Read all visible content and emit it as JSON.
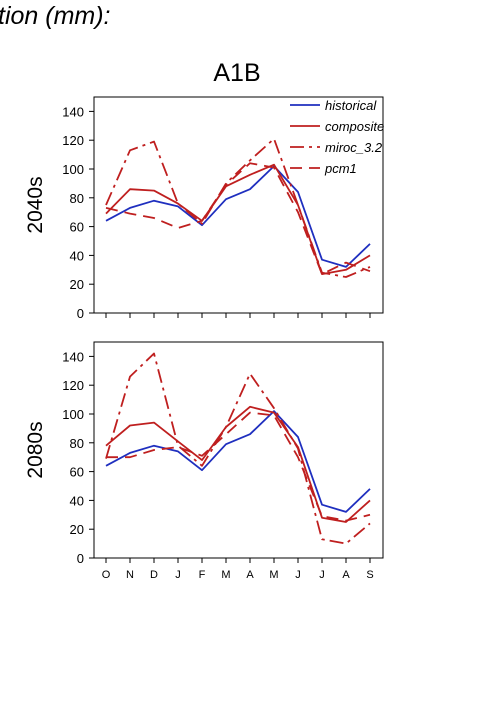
{
  "header": {
    "text": "tion (mm):"
  },
  "scenario_title": "A1B",
  "colors": {
    "historical": "#1f2fbf",
    "projection": "#bf1f1f"
  },
  "chart_data": [
    {
      "type": "line",
      "panel_label": "2040s",
      "categories": [
        "O",
        "N",
        "D",
        "J",
        "F",
        "M",
        "A",
        "M",
        "J",
        "J",
        "A",
        "S"
      ],
      "ylim": [
        0,
        150
      ],
      "yticks": [
        0,
        20,
        40,
        60,
        80,
        100,
        120,
        140
      ],
      "grid": false,
      "legend_position": "top-right",
      "series": [
        {
          "name": "historical",
          "color": "#1f2fbf",
          "dash": "solid",
          "values": [
            64,
            73,
            78,
            74,
            61,
            79,
            86,
            102,
            84,
            37,
            32,
            48
          ]
        },
        {
          "name": "composite",
          "color": "#bf1f1f",
          "dash": "solid",
          "values": [
            69,
            86,
            85,
            76,
            64,
            88,
            96,
            103,
            75,
            27,
            30,
            40
          ]
        },
        {
          "name": "miroc_3.2",
          "color": "#bf1f1f",
          "dash": "dashdot",
          "values": [
            75,
            113,
            119,
            76,
            62,
            90,
            106,
            121,
            75,
            28,
            25,
            32
          ]
        },
        {
          "name": "pcm1",
          "color": "#bf1f1f",
          "dash": "dashed",
          "values": [
            73,
            69,
            66,
            59,
            64,
            89,
            104,
            101,
            70,
            27,
            35,
            29
          ]
        }
      ]
    },
    {
      "type": "line",
      "panel_label": "2080s",
      "categories": [
        "O",
        "N",
        "D",
        "J",
        "F",
        "M",
        "A",
        "M",
        "J",
        "J",
        "A",
        "S"
      ],
      "ylim": [
        0,
        150
      ],
      "yticks": [
        0,
        20,
        40,
        60,
        80,
        100,
        120,
        140
      ],
      "grid": false,
      "series": [
        {
          "name": "historical",
          "color": "#1f2fbf",
          "dash": "solid",
          "values": [
            64,
            73,
            78,
            74,
            61,
            79,
            86,
            102,
            84,
            37,
            32,
            48
          ]
        },
        {
          "name": "composite",
          "color": "#bf1f1f",
          "dash": "solid",
          "values": [
            78,
            92,
            94,
            81,
            68,
            91,
            105,
            101,
            77,
            28,
            25,
            40
          ]
        },
        {
          "name": "miroc_3.2",
          "color": "#bf1f1f",
          "dash": "dashdot",
          "values": [
            69,
            126,
            142,
            78,
            64,
            91,
            128,
            104,
            76,
            13,
            10,
            24
          ]
        },
        {
          "name": "pcm1",
          "color": "#bf1f1f",
          "dash": "dashed",
          "values": [
            70,
            70,
            75,
            77,
            71,
            86,
            101,
            99,
            70,
            29,
            26,
            30
          ]
        }
      ]
    }
  ]
}
